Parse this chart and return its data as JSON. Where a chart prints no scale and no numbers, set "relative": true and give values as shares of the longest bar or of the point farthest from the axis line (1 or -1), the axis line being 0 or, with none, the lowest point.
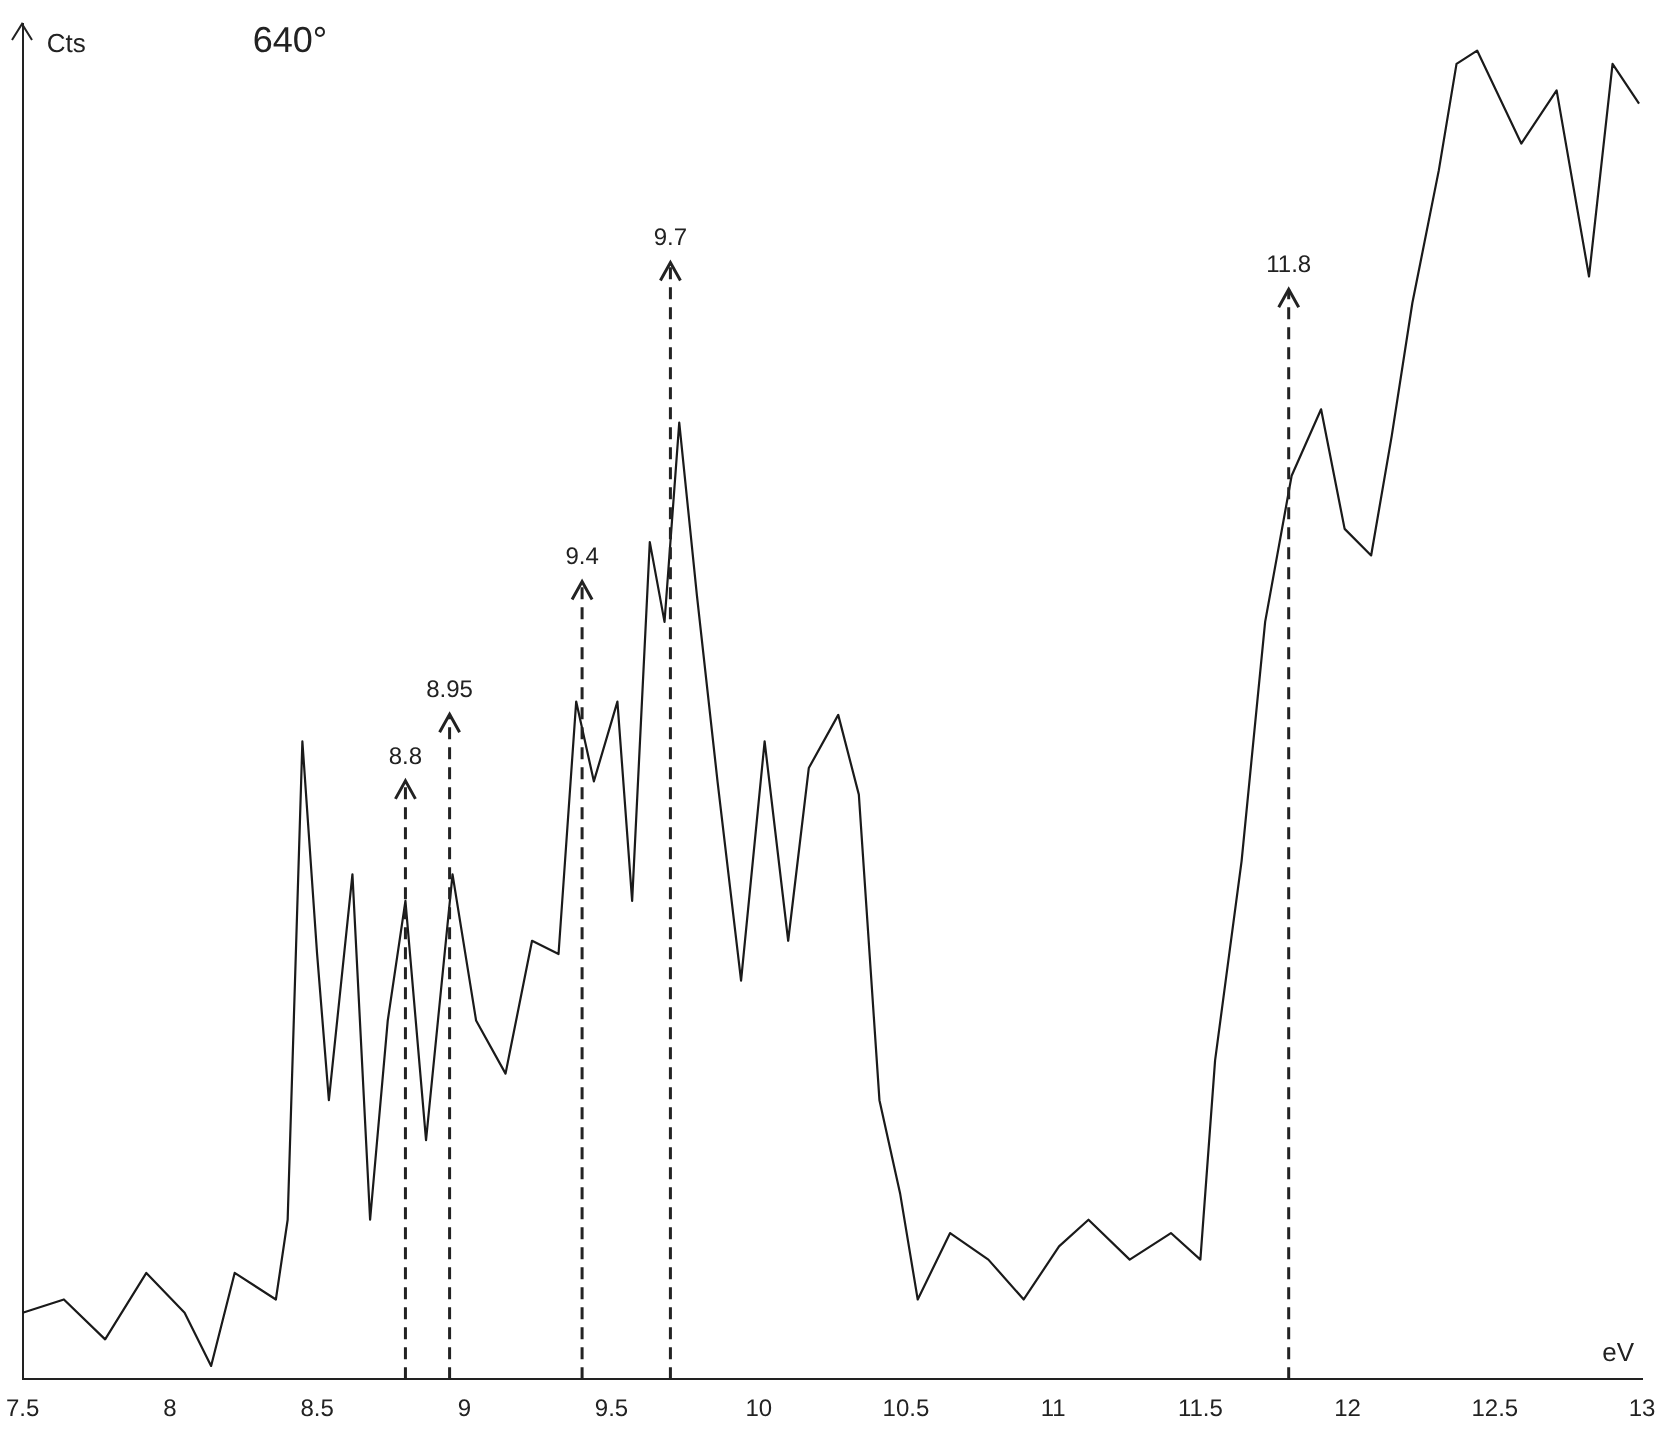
{
  "chart_data": {
    "type": "line",
    "title": "640°",
    "xlabel": "eV",
    "ylabel": "Cts",
    "relative": true,
    "xlim": [
      7.5,
      13
    ],
    "xticks": [
      7.5,
      8,
      8.5,
      9,
      9.5,
      10,
      10.5,
      11,
      11.5,
      12,
      12.5,
      13
    ],
    "grid": false,
    "legend": false,
    "marker": "none",
    "line_style": "solid",
    "x": [
      7.5,
      7.64,
      7.78,
      7.92,
      8.05,
      8.14,
      8.22,
      8.36,
      8.4,
      8.45,
      8.5,
      8.54,
      8.62,
      8.68,
      8.74,
      8.8,
      8.87,
      8.96,
      9.04,
      9.14,
      9.23,
      9.32,
      9.38,
      9.44,
      9.52,
      9.57,
      9.63,
      9.68,
      9.73,
      9.79,
      9.86,
      9.94,
      10.02,
      10.1,
      10.17,
      10.27,
      10.34,
      10.41,
      10.48,
      10.54,
      10.65,
      10.78,
      10.9,
      11.02,
      11.12,
      11.26,
      11.4,
      11.5,
      11.55,
      11.64,
      11.72,
      11.81,
      11.91,
      11.99,
      12.08,
      12.15,
      12.22,
      12.31,
      12.37,
      12.44,
      12.59,
      12.71,
      12.82,
      12.9,
      12.99
    ],
    "series": [
      {
        "color": "#1a1a1a",
        "values": [
          0.05,
          0.06,
          0.03,
          0.08,
          0.05,
          0.01,
          0.08,
          0.06,
          0.12,
          0.48,
          0.32,
          0.21,
          0.38,
          0.12,
          0.27,
          0.36,
          0.18,
          0.38,
          0.27,
          0.23,
          0.33,
          0.32,
          0.51,
          0.45,
          0.51,
          0.36,
          0.63,
          0.57,
          0.72,
          0.59,
          0.45,
          0.3,
          0.48,
          0.33,
          0.46,
          0.5,
          0.44,
          0.21,
          0.14,
          0.06,
          0.11,
          0.09,
          0.06,
          0.1,
          0.12,
          0.09,
          0.11,
          0.09,
          0.24,
          0.39,
          0.57,
          0.68,
          0.73,
          0.64,
          0.62,
          0.71,
          0.81,
          0.91,
          0.99,
          1,
          0.93,
          0.97,
          0.83,
          0.99,
          0.96
        ]
      }
    ],
    "ref_lines": [
      {
        "axis": "x",
        "value": 8.8,
        "label": "8.8",
        "line_style": "dashed"
      },
      {
        "axis": "x",
        "value": 8.95,
        "label": "8.95",
        "line_style": "dashed"
      },
      {
        "axis": "x",
        "value": 9.4,
        "label": "9.4",
        "line_style": "dashed"
      },
      {
        "axis": "x",
        "value": 9.7,
        "label": "9.7",
        "line_style": "dashed"
      },
      {
        "axis": "x",
        "value": 11.8,
        "label": "11.8",
        "line_style": "dashed"
      }
    ]
  }
}
